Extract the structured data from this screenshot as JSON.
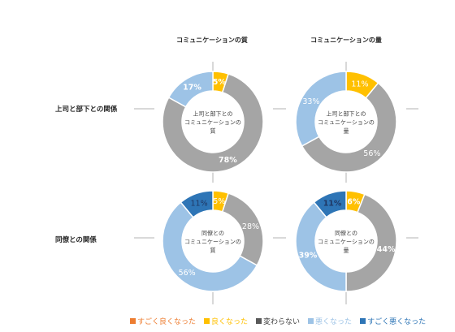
{
  "column_titles": [
    "コミュニケーションの質",
    "コミュニケーションの量"
  ],
  "row_titles": [
    "上司と部下との関係",
    "同僚との関係"
  ],
  "legend": [
    {
      "label": "すごく良くなった",
      "color": "#ED7D31"
    },
    {
      "label": "良くなった",
      "color": "#FFC000"
    },
    {
      "label": "変わらない",
      "color": "#A5A5A5"
    },
    {
      "label": "悪くなった",
      "color": "#9DC3E6"
    },
    {
      "label": "すごく悪くなった",
      "color": "#2E75B6"
    }
  ],
  "chart_data": [
    {
      "type": "pie",
      "center_label": [
        "上司と部下との",
        "コミュニケーションの",
        "質"
      ],
      "categories": [
        "すごく良くなった",
        "良くなった",
        "変わらない",
        "悪くなった",
        "すごく悪くなった"
      ],
      "values": [
        0,
        5,
        78,
        17,
        0
      ],
      "labels": [
        "",
        "5%",
        "78%",
        "17%",
        ""
      ],
      "bold_labels": true
    },
    {
      "type": "pie",
      "center_label": [
        "上司と部下との",
        "コミュニケーションの",
        "量"
      ],
      "categories": [
        "すごく良くなった",
        "良くなった",
        "変わらない",
        "悪くなった",
        "すごく悪くなった"
      ],
      "values": [
        0,
        11,
        56,
        33,
        0
      ],
      "labels": [
        "",
        "11%",
        "56%",
        "33%",
        ""
      ],
      "bold_labels": false
    },
    {
      "type": "pie",
      "center_label": [
        "同僚との",
        "コミュニケーションの",
        "質"
      ],
      "categories": [
        "すごく良くなった",
        "良くなった",
        "変わらない",
        "悪くなった",
        "すごく悪くなった"
      ],
      "values": [
        0,
        5,
        28,
        56,
        11
      ],
      "labels": [
        "",
        "5%",
        "28%",
        "56%",
        "11%"
      ],
      "bold_labels": false
    },
    {
      "type": "pie",
      "center_label": [
        "同僚との",
        "コミュニケーションの",
        "量"
      ],
      "categories": [
        "すごく良くなった",
        "良くなった",
        "変わらない",
        "悪くなった",
        "すごく悪くなった"
      ],
      "values": [
        0,
        6,
        44,
        39,
        11
      ],
      "labels": [
        "",
        "6%",
        "44%",
        "39%",
        "11%"
      ],
      "bold_labels": true
    }
  ]
}
